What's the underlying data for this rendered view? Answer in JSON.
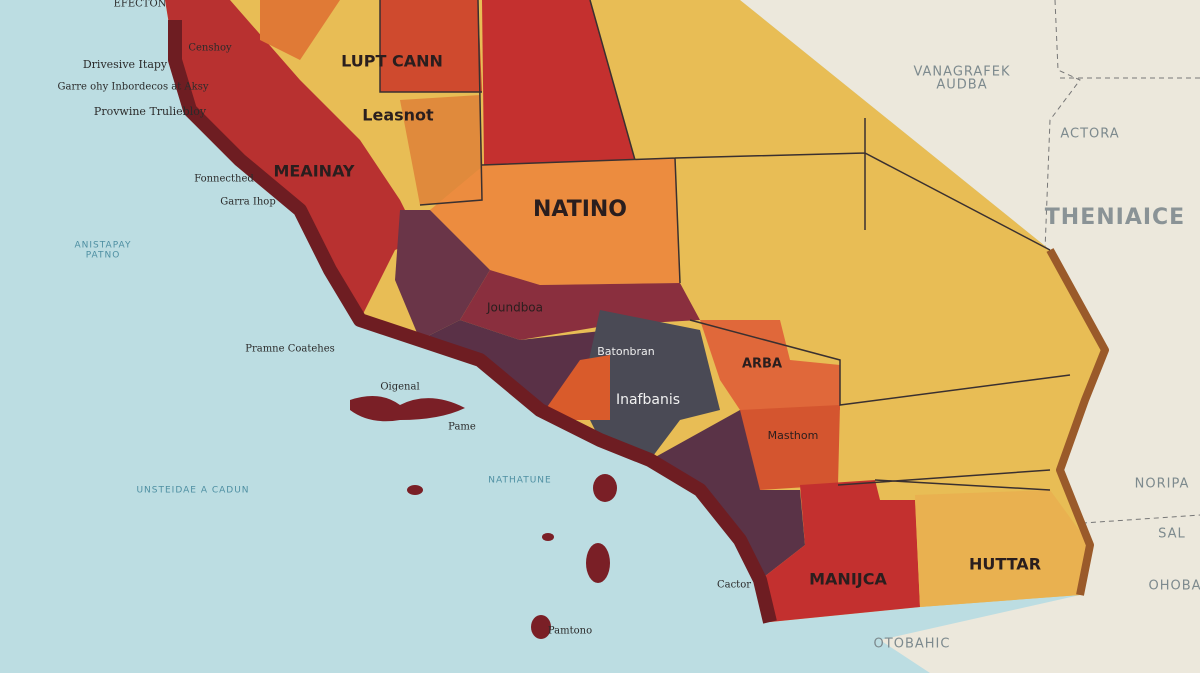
{
  "map": {
    "regions": [
      "LUPT CANN",
      "Leasnot",
      "MEAINAY",
      "NATINO",
      "Joundboa",
      "Batonbran",
      "ARBA",
      "Inafbanis",
      "Masthom",
      "MANIJCA",
      "HUTTAR"
    ],
    "outer_areas": [
      "THENIAICE",
      "VANAGRAFEK",
      "AUDBA",
      "ACTORA",
      "NORIPA",
      "SAL",
      "OHOBA",
      "OTOBAHIC"
    ],
    "sea_labels": [
      "ANISTAPAY",
      "PATNO",
      "UNSTEIDAE A CADUN",
      "NATHATUNE"
    ],
    "places": [
      "EFECTON",
      "Drivesive Itapy",
      "Garre ohy Inbordecos at Aksy",
      "Provwine Truliebloy",
      "Censhoy",
      "Fonnecthed",
      "Garra Ihop",
      "Pramne Coatehes",
      "Pamtono",
      "Pame",
      "Oigenal",
      "Cactor"
    ]
  }
}
